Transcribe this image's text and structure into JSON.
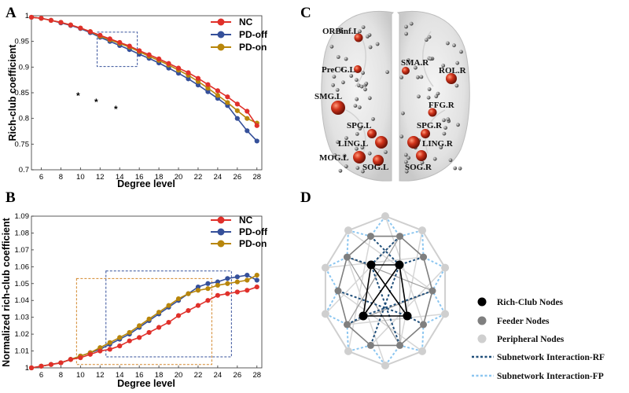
{
  "panel_labels": {
    "a": "A",
    "b": "B",
    "c": "C",
    "d": "D"
  },
  "colors": {
    "NC": "#e0302a",
    "PD-off": "#35509a",
    "PD-on": "#b8860b",
    "rich_club": "#000000",
    "feeder": "#7f7f7f",
    "peripheral": "#cfcfcf",
    "rf": "#1f4e79",
    "fp": "#8cc6f0",
    "node_red": "#d0331b",
    "node_gray": "#8a8a8a"
  },
  "chart_data": [
    {
      "type": "line",
      "panel": "A",
      "xlabel": "Degree level",
      "ylabel": "Rich-club coefficient",
      "x": [
        5,
        6,
        7,
        8,
        9,
        10,
        11,
        12,
        13,
        14,
        15,
        16,
        17,
        18,
        19,
        20,
        21,
        22,
        23,
        24,
        25,
        26,
        27,
        28
      ],
      "xticks": [
        6,
        8,
        10,
        12,
        14,
        16,
        18,
        20,
        22,
        24,
        26,
        28
      ],
      "yticks": [
        1,
        0.95,
        0.9,
        0.85,
        0.8,
        0.75,
        0.7
      ],
      "xlim": [
        5,
        28.5
      ],
      "ylim": [
        0.7,
        1.0
      ],
      "series": [
        {
          "name": "NC",
          "values": [
            0.997,
            0.995,
            0.991,
            0.987,
            0.982,
            0.976,
            0.969,
            0.962,
            0.955,
            0.948,
            0.941,
            0.932,
            0.924,
            0.916,
            0.907,
            0.898,
            0.889,
            0.878,
            0.866,
            0.854,
            0.842,
            0.828,
            0.814,
            0.786
          ]
        },
        {
          "name": "PD-off",
          "values": [
            0.997,
            0.995,
            0.991,
            0.986,
            0.981,
            0.975,
            0.967,
            0.958,
            0.95,
            0.942,
            0.934,
            0.925,
            0.917,
            0.908,
            0.898,
            0.888,
            0.877,
            0.865,
            0.852,
            0.839,
            0.825,
            0.8,
            0.776,
            0.756
          ]
        },
        {
          "name": "PD-on",
          "values": [
            0.997,
            0.995,
            0.991,
            0.987,
            0.982,
            0.976,
            0.969,
            0.96,
            0.953,
            0.946,
            0.939,
            0.93,
            0.921,
            0.913,
            0.904,
            0.894,
            0.884,
            0.872,
            0.859,
            0.845,
            0.831,
            0.815,
            0.8,
            0.791
          ]
        }
      ],
      "annotations": [
        "*",
        "*",
        "*"
      ],
      "highlight_box": {
        "x_range": [
          11.7,
          15.8
        ],
        "y_range": [
          0.901,
          0.968
        ],
        "color": "#35509a"
      }
    },
    {
      "type": "line",
      "panel": "B",
      "xlabel": "Degree level",
      "ylabel": "Normalized rich-club coefficient",
      "x": [
        5,
        6,
        7,
        8,
        9,
        10,
        11,
        12,
        13,
        14,
        15,
        16,
        17,
        18,
        19,
        20,
        21,
        22,
        23,
        24,
        25,
        26,
        27,
        28
      ],
      "xticks": [
        6,
        8,
        10,
        12,
        14,
        16,
        18,
        20,
        22,
        24,
        26,
        28
      ],
      "yticks": [
        1,
        1.01,
        1.02,
        1.03,
        1.04,
        1.05,
        1.06,
        1.07,
        1.08,
        1.09
      ],
      "xlim": [
        5,
        28.5
      ],
      "ylim": [
        1.0,
        1.09
      ],
      "series": [
        {
          "name": "NC",
          "values": [
            1.0,
            1.001,
            1.002,
            1.003,
            1.005,
            1.006,
            1.008,
            1.01,
            1.011,
            1.013,
            1.016,
            1.018,
            1.021,
            1.024,
            1.027,
            1.031,
            1.034,
            1.037,
            1.04,
            1.043,
            1.044,
            1.045,
            1.046,
            1.048
          ]
        },
        {
          "name": "PD-off",
          "values": [
            1.0,
            1.001,
            1.002,
            1.003,
            1.005,
            1.007,
            1.009,
            1.011,
            1.014,
            1.017,
            1.02,
            1.024,
            1.028,
            1.032,
            1.036,
            1.04,
            1.044,
            1.048,
            1.05,
            1.051,
            1.053,
            1.054,
            1.055,
            1.052
          ]
        },
        {
          "name": "PD-on",
          "values": [
            1.0,
            1.001,
            1.002,
            1.003,
            1.005,
            1.007,
            1.009,
            1.012,
            1.015,
            1.018,
            1.021,
            1.025,
            1.029,
            1.033,
            1.037,
            1.041,
            1.044,
            1.046,
            1.047,
            1.049,
            1.05,
            1.051,
            1.052,
            1.055
          ]
        }
      ],
      "highlight_boxes": [
        {
          "x_range": [
            9.6,
            23.4
          ],
          "y_range": [
            1.002,
            1.053
          ],
          "color": "#d2862a"
        },
        {
          "x_range": [
            12.6,
            25.4
          ],
          "y_range": [
            1.0065,
            1.0575
          ],
          "color": "#35509a"
        }
      ]
    }
  ],
  "legend": {
    "nc": "NC",
    "pd_off": "PD-off",
    "pd_on": "PD-on"
  },
  "panel_a": {
    "stars": [
      "*",
      "*",
      "*"
    ]
  },
  "brain": {
    "regions": [
      {
        "label": "ORBinf.L",
        "r": 6
      },
      {
        "label": "PreCG.L",
        "r": 5
      },
      {
        "label": "SMA.R",
        "r": 5
      },
      {
        "label": "ROL.R",
        "r": 7
      },
      {
        "label": "SMG.L",
        "r": 9
      },
      {
        "label": "FFG.R",
        "r": 6
      },
      {
        "label": "SPG.L",
        "r": 6
      },
      {
        "label": "SPG.R",
        "r": 6
      },
      {
        "label": "LING.L",
        "r": 8
      },
      {
        "label": "LING.R",
        "r": 8
      },
      {
        "label": "MOG.L",
        "r": 8
      },
      {
        "label": "SOG.L",
        "r": 7
      },
      {
        "label": "SOG.R",
        "r": 7
      }
    ]
  },
  "network": {
    "legend": {
      "rich_club": "Rich-Club Nodes",
      "feeder": "Feeder Nodes",
      "peripheral": "Peripheral Nodes",
      "rf": "Subnetwork Interaction-RF",
      "fp": "Subnetwork Interaction-FP"
    }
  }
}
